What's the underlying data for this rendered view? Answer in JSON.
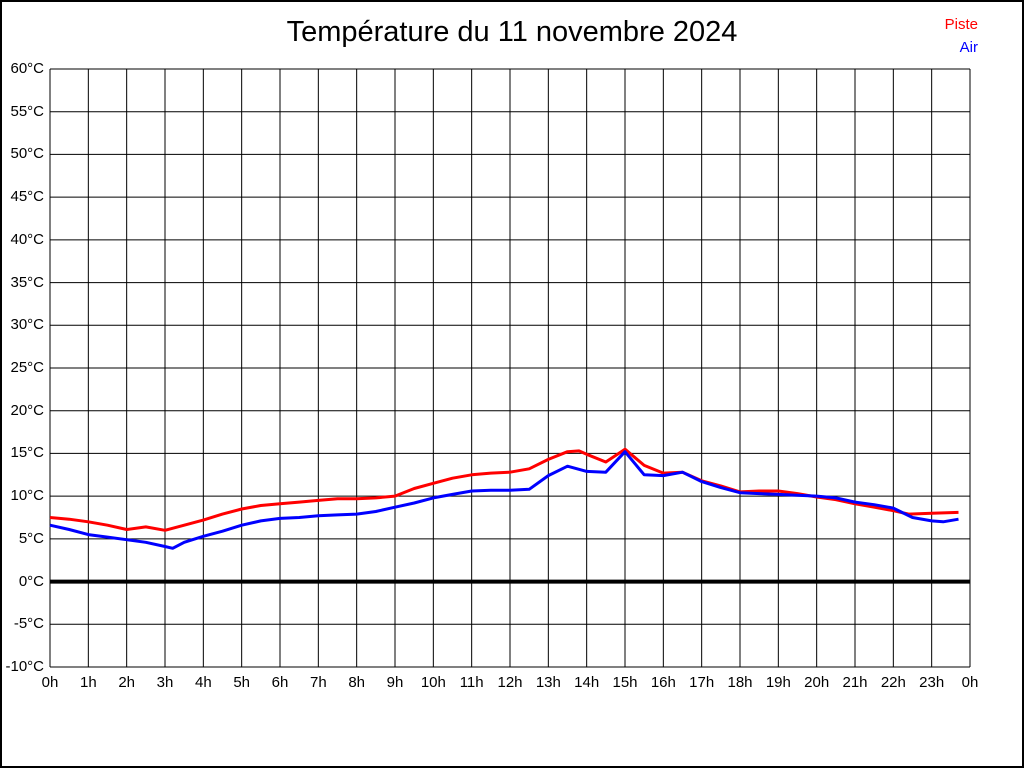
{
  "title": "Température du 11 novembre 2024",
  "legend": {
    "position": "top-right",
    "items": [
      {
        "label": "Piste",
        "color": "#ff0000"
      },
      {
        "label": "Air",
        "color": "#0000ff"
      }
    ]
  },
  "colors": {
    "grid": "#000000",
    "zero_line": "#000000",
    "background": "#ffffff",
    "frame": "#000000",
    "piste": "#ff0000",
    "air": "#0000ff"
  },
  "chart_data": {
    "type": "line",
    "title": "Température du 11 novembre 2024",
    "xlabel": "",
    "ylabel": "",
    "xlim": [
      0,
      24
    ],
    "ylim": [
      -10,
      60
    ],
    "y_step": 5,
    "grid": true,
    "zero_line_value": 0,
    "legend_position": "top-right",
    "x_tick_labels": [
      "0h",
      "1h",
      "2h",
      "3h",
      "4h",
      "5h",
      "6h",
      "7h",
      "8h",
      "9h",
      "10h",
      "11h",
      "12h",
      "13h",
      "14h",
      "15h",
      "16h",
      "17h",
      "18h",
      "19h",
      "20h",
      "21h",
      "22h",
      "23h",
      "0h"
    ],
    "y_tick_labels": [
      "60°C",
      "55°C",
      "50°C",
      "45°C",
      "40°C",
      "35°C",
      "30°C",
      "25°C",
      "20°C",
      "15°C",
      "10°C",
      "5°C",
      "0°C",
      "-5°C",
      "-10°C"
    ],
    "x_unit": "hours",
    "y_unit": "°C",
    "series": [
      {
        "name": "Piste",
        "color": "#ff0000",
        "points": [
          [
            0,
            7.5
          ],
          [
            0.5,
            7.3
          ],
          [
            1,
            7.0
          ],
          [
            1.5,
            6.6
          ],
          [
            2,
            6.1
          ],
          [
            2.5,
            6.4
          ],
          [
            3,
            6.0
          ],
          [
            3.5,
            6.6
          ],
          [
            4,
            7.2
          ],
          [
            4.5,
            7.9
          ],
          [
            5,
            8.5
          ],
          [
            5.5,
            8.9
          ],
          [
            6,
            9.1
          ],
          [
            6.5,
            9.3
          ],
          [
            7,
            9.5
          ],
          [
            7.5,
            9.7
          ],
          [
            8,
            9.7
          ],
          [
            8.5,
            9.8
          ],
          [
            9,
            10.0
          ],
          [
            9.5,
            10.9
          ],
          [
            10,
            11.5
          ],
          [
            10.5,
            12.1
          ],
          [
            11,
            12.5
          ],
          [
            11.5,
            12.7
          ],
          [
            12,
            12.8
          ],
          [
            12.5,
            13.2
          ],
          [
            13,
            14.3
          ],
          [
            13.5,
            15.2
          ],
          [
            13.8,
            15.3
          ],
          [
            14,
            14.9
          ],
          [
            14.5,
            14.0
          ],
          [
            15,
            15.5
          ],
          [
            15.5,
            13.6
          ],
          [
            16,
            12.7
          ],
          [
            16.5,
            12.8
          ],
          [
            17,
            11.8
          ],
          [
            17.5,
            11.2
          ],
          [
            18,
            10.5
          ],
          [
            18.5,
            10.6
          ],
          [
            19,
            10.6
          ],
          [
            19.5,
            10.3
          ],
          [
            20,
            9.9
          ],
          [
            20.5,
            9.6
          ],
          [
            21,
            9.1
          ],
          [
            21.5,
            8.7
          ],
          [
            22,
            8.3
          ],
          [
            22.4,
            7.9
          ],
          [
            23,
            8.0
          ],
          [
            23.7,
            8.1
          ]
        ]
      },
      {
        "name": "Air",
        "color": "#0000ff",
        "points": [
          [
            0,
            6.6
          ],
          [
            0.5,
            6.1
          ],
          [
            1,
            5.5
          ],
          [
            1.5,
            5.2
          ],
          [
            2,
            4.9
          ],
          [
            2.5,
            4.6
          ],
          [
            3,
            4.1
          ],
          [
            3.2,
            3.9
          ],
          [
            3.5,
            4.6
          ],
          [
            4,
            5.3
          ],
          [
            4.5,
            5.9
          ],
          [
            5,
            6.6
          ],
          [
            5.5,
            7.1
          ],
          [
            6,
            7.4
          ],
          [
            6.5,
            7.5
          ],
          [
            7,
            7.7
          ],
          [
            7.5,
            7.8
          ],
          [
            8,
            7.9
          ],
          [
            8.5,
            8.2
          ],
          [
            9,
            8.7
          ],
          [
            9.5,
            9.2
          ],
          [
            10,
            9.8
          ],
          [
            10.5,
            10.2
          ],
          [
            11,
            10.6
          ],
          [
            11.5,
            10.7
          ],
          [
            12,
            10.7
          ],
          [
            12.5,
            10.8
          ],
          [
            13,
            12.4
          ],
          [
            13.5,
            13.5
          ],
          [
            14,
            12.9
          ],
          [
            14.5,
            12.8
          ],
          [
            15,
            15.2
          ],
          [
            15.5,
            12.5
          ],
          [
            16,
            12.4
          ],
          [
            16.5,
            12.8
          ],
          [
            17,
            11.7
          ],
          [
            17.5,
            11.0
          ],
          [
            18,
            10.4
          ],
          [
            18.5,
            10.3
          ],
          [
            19,
            10.2
          ],
          [
            19.5,
            10.1
          ],
          [
            20,
            10.0
          ],
          [
            20.5,
            9.8
          ],
          [
            21,
            9.3
          ],
          [
            21.5,
            9.0
          ],
          [
            22,
            8.6
          ],
          [
            22.5,
            7.5
          ],
          [
            23,
            7.1
          ],
          [
            23.3,
            7.0
          ],
          [
            23.7,
            7.3
          ]
        ]
      }
    ]
  }
}
